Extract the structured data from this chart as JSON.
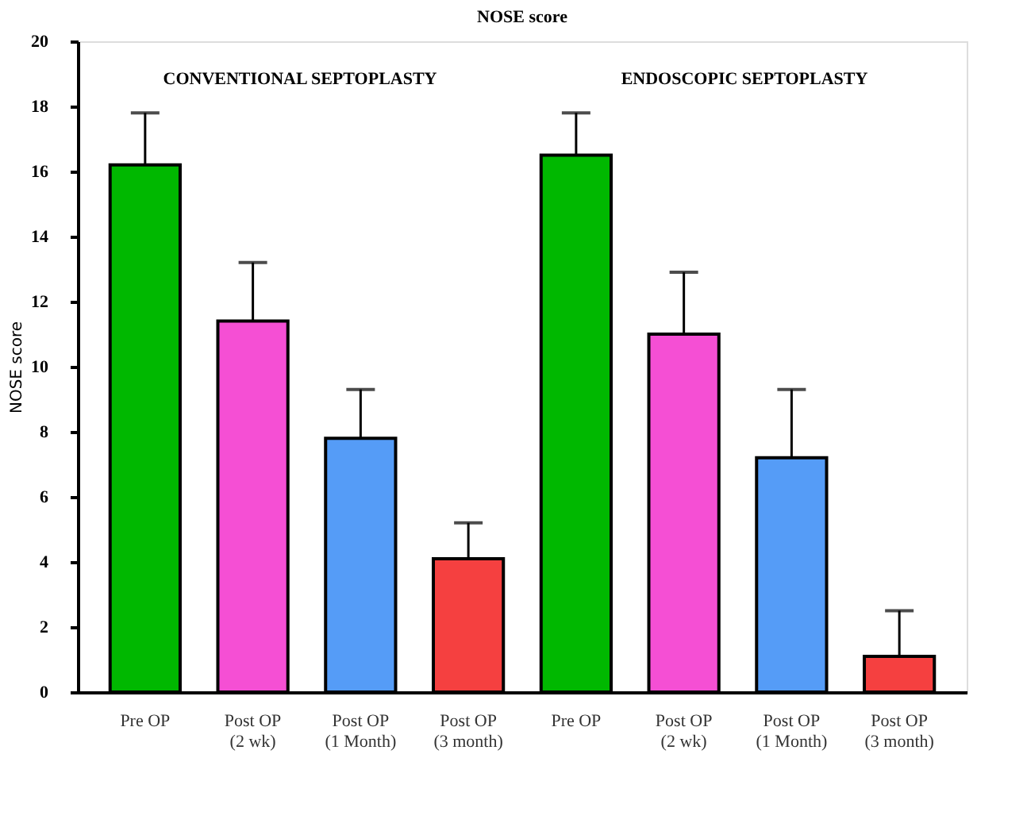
{
  "chart_data": {
    "type": "bar",
    "title": "NOSE score",
    "ylabel": "NOSE score",
    "categories": [
      "Pre OP",
      "Post OP (2 wk)",
      "Post OP (1 Month)",
      "Post OP (3 month)",
      "Pre OP",
      "Post OP (2 wk)",
      "Post OP (1 Month)",
      "Post OP (3 month)"
    ],
    "values": [
      16.2,
      11.4,
      7.8,
      4.1,
      16.5,
      11.0,
      7.2,
      1.1
    ],
    "errors": [
      [
        16.2,
        17.8
      ],
      [
        11.4,
        13.2
      ],
      [
        7.8,
        9.3
      ],
      [
        4.1,
        5.2
      ],
      [
        16.5,
        17.8
      ],
      [
        11.0,
        12.9
      ],
      [
        7.2,
        9.3
      ],
      [
        1.1,
        2.5
      ]
    ],
    "colors": [
      "#00b800",
      "#f54fd4",
      "#559cf7",
      "#f54040",
      "#00b800",
      "#f54fd4",
      "#559cf7",
      "#f54040"
    ],
    "annotations": [
      "CONVENTIONAL SEPTOPLASTY",
      "ENDOSCOPIC SEPTOPLASTY"
    ],
    "ylim": [
      0,
      20
    ],
    "yticks": [
      0,
      2,
      4,
      6,
      8,
      10,
      12,
      14,
      16,
      18,
      20
    ],
    "grid": false
  }
}
